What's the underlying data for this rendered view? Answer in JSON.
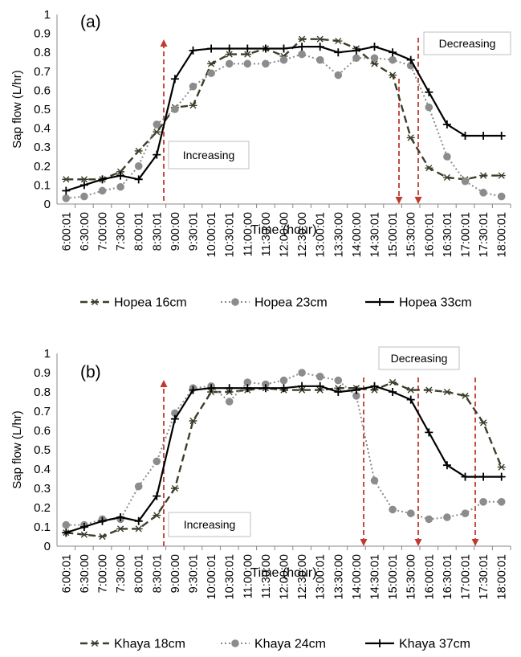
{
  "chart_data": [
    {
      "type": "line",
      "panel_label": "(a)",
      "xlabel": "Time (hour)",
      "ylabel": "Sap flow (L/hr)",
      "ylim": [
        0,
        1
      ],
      "yticks": [
        "0",
        "0.1",
        "0.2",
        "0.3",
        "0.4",
        "0.5",
        "0.6",
        "0.7",
        "0.8",
        "0.9",
        "1"
      ],
      "categories": [
        "6:00:01",
        "6:30:00",
        "7:00:00",
        "7:30:00",
        "8:00:01",
        "8:30:01",
        "9:00:00",
        "9:30:01",
        "10:00:01",
        "10:30:01",
        "11:00:00",
        "11:30:00",
        "12:00:00",
        "12:30:00",
        "13:00:01",
        "13:30:00",
        "14:00:00",
        "14:30:01",
        "15:00:01",
        "15:30:00",
        "16:00:01",
        "16:30:01",
        "17:00:01",
        "17:30:01",
        "18:00:01"
      ],
      "series": [
        {
          "name": "Hopea 16cm",
          "color": "#3d3d2a",
          "style": "dashed",
          "marker": "asterisk",
          "values": [
            0.13,
            0.13,
            0.13,
            0.17,
            0.28,
            0.38,
            0.51,
            0.52,
            0.74,
            0.79,
            0.79,
            0.82,
            0.78,
            0.87,
            0.87,
            0.86,
            0.82,
            0.74,
            0.68,
            0.35,
            0.19,
            0.14,
            0.13,
            0.15,
            0.15
          ]
        },
        {
          "name": "Hopea 23cm",
          "color": "#8c8c8c",
          "style": "dotted",
          "marker": "circle",
          "values": [
            0.03,
            0.04,
            0.07,
            0.09,
            0.2,
            0.42,
            0.5,
            0.62,
            0.69,
            0.74,
            0.74,
            0.74,
            0.76,
            0.79,
            0.76,
            0.68,
            0.77,
            0.77,
            0.76,
            0.73,
            0.51,
            0.25,
            0.12,
            0.06,
            0.04
          ]
        },
        {
          "name": "Hopea 33cm",
          "color": "#000000",
          "style": "solid",
          "marker": "plus",
          "values": [
            0.07,
            0.1,
            0.13,
            0.15,
            0.13,
            0.26,
            0.66,
            0.81,
            0.82,
            0.82,
            0.82,
            0.82,
            0.82,
            0.83,
            0.83,
            0.8,
            0.81,
            0.83,
            0.8,
            0.76,
            0.59,
            0.42,
            0.36,
            0.36,
            0.36
          ]
        }
      ],
      "annotations": [
        {
          "text": "Increasing",
          "category_index": 5,
          "arrow": "up"
        },
        {
          "text": "Decreasing",
          "category_index": 18.6,
          "arrow": "down"
        },
        {
          "category_index": 19.3,
          "arrow": "down"
        }
      ]
    },
    {
      "type": "line",
      "panel_label": "(b)",
      "xlabel": "Time (hour)",
      "ylabel": "Sap flow (L/hr)",
      "ylim": [
        0,
        1
      ],
      "yticks": [
        "0",
        "0.1",
        "0.2",
        "0.3",
        "0.4",
        "0.5",
        "0.6",
        "0.7",
        "0.8",
        "0.9",
        "1"
      ],
      "categories": [
        "6:00:01",
        "6:30:00",
        "7:00:00",
        "7:30:00",
        "8:00:01",
        "8:30:01",
        "9:00:00",
        "9:30:01",
        "10:00:01",
        "10:30:01",
        "11:00:00",
        "11:30:00",
        "12:00:00",
        "12:30:00",
        "13:00:01",
        "13:30:00",
        "14:00:00",
        "14:30:01",
        "15:00:01",
        "15:30:00",
        "16:00:01",
        "16:30:01",
        "17:00:01",
        "17:30:01",
        "18:00:01"
      ],
      "series": [
        {
          "name": "Khaya 18cm",
          "color": "#3d3d2a",
          "style": "dashed",
          "marker": "asterisk",
          "values": [
            0.07,
            0.06,
            0.05,
            0.09,
            0.09,
            0.16,
            0.3,
            0.65,
            0.8,
            0.8,
            0.81,
            0.82,
            0.81,
            0.81,
            0.81,
            0.82,
            0.82,
            0.81,
            0.85,
            0.81,
            0.81,
            0.8,
            0.78,
            0.64,
            0.41
          ]
        },
        {
          "name": "Khaya 24cm",
          "color": "#8c8c8c",
          "style": "dotted",
          "marker": "circle",
          "values": [
            0.11,
            0.11,
            0.14,
            0.14,
            0.31,
            0.44,
            0.69,
            0.82,
            0.83,
            0.75,
            0.85,
            0.84,
            0.86,
            0.9,
            0.88,
            0.86,
            0.78,
            0.34,
            0.19,
            0.17,
            0.14,
            0.15,
            0.17,
            0.23,
            0.23
          ]
        },
        {
          "name": "Khaya 37cm",
          "color": "#000000",
          "style": "solid",
          "marker": "plus",
          "values": [
            0.07,
            0.1,
            0.13,
            0.15,
            0.13,
            0.26,
            0.66,
            0.81,
            0.82,
            0.82,
            0.82,
            0.82,
            0.82,
            0.83,
            0.83,
            0.8,
            0.81,
            0.83,
            0.8,
            0.76,
            0.59,
            0.42,
            0.36,
            0.36,
            0.36
          ]
        }
      ],
      "annotations": [
        {
          "text": "Increasing",
          "category_index": 5,
          "arrow": "up"
        },
        {
          "text": "Decreasing",
          "category_index": 16,
          "arrow": "down"
        },
        {
          "category_index": 19,
          "arrow": "down"
        },
        {
          "category_index": 22,
          "arrow": "down"
        }
      ]
    }
  ]
}
